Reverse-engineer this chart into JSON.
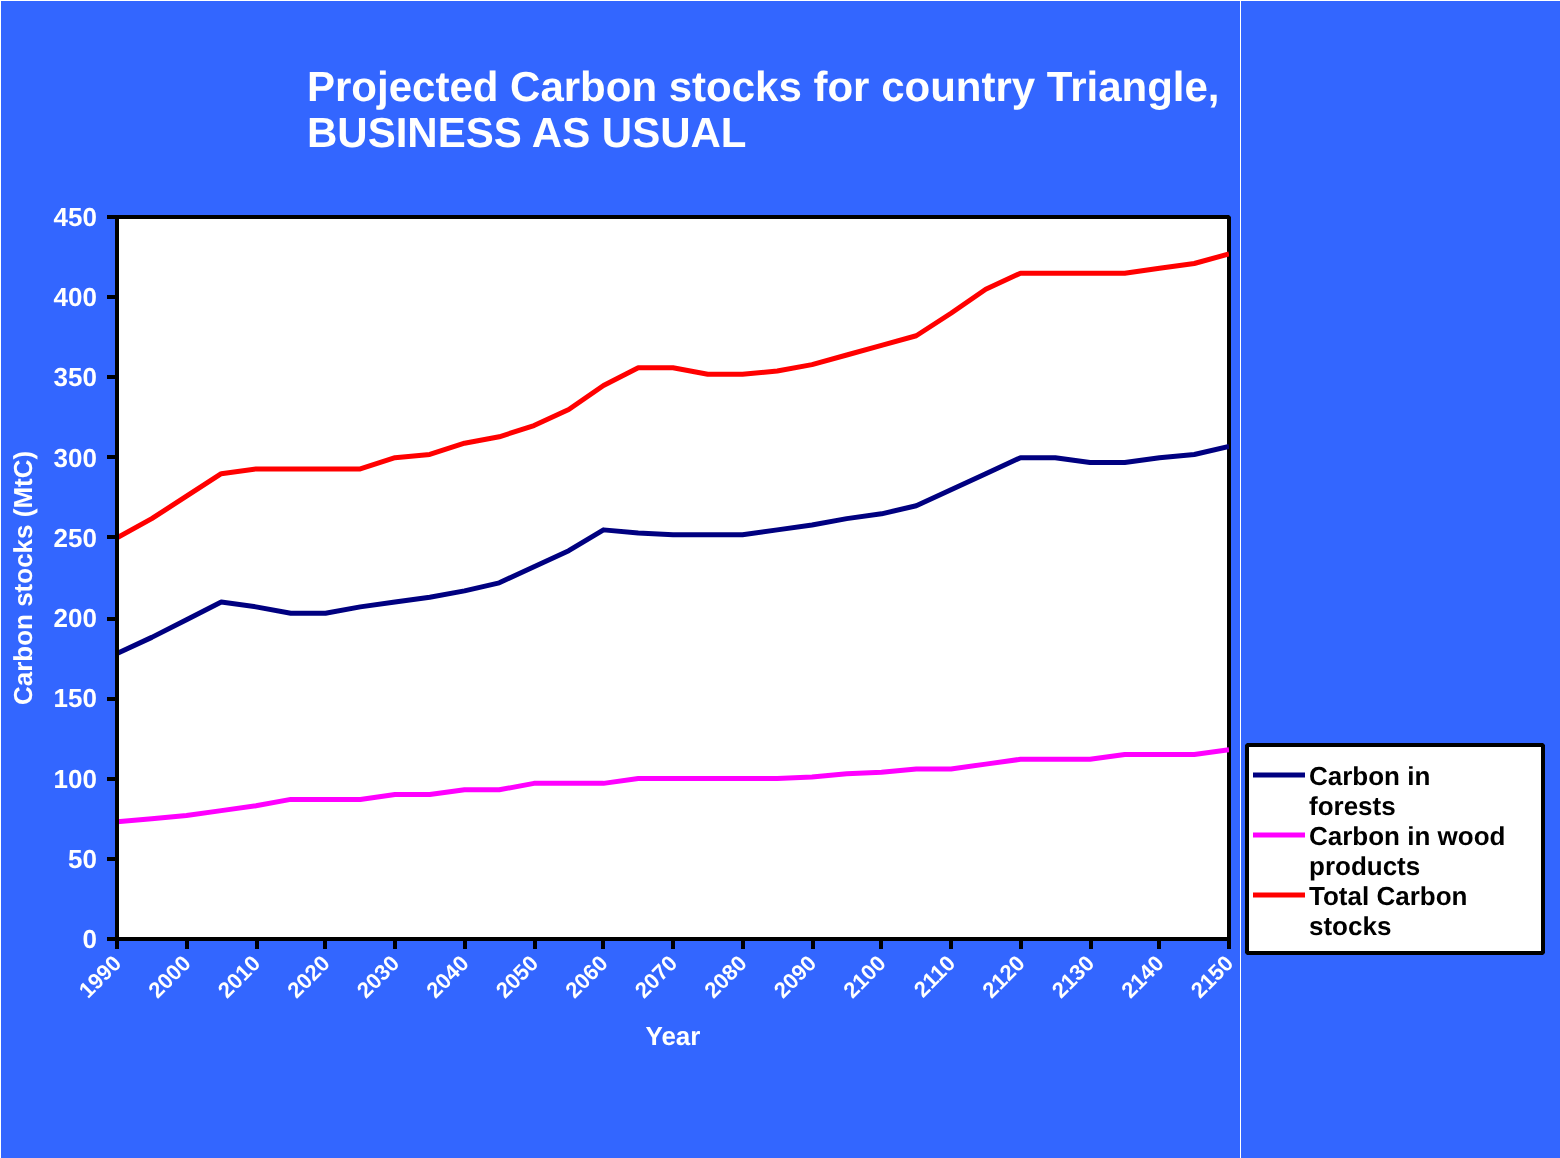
{
  "chart_data": {
    "type": "line",
    "title": "Projected Carbon stocks for country Triangle,\nBUSINESS AS USUAL",
    "xlabel": "Year",
    "ylabel": "Carbon stocks (MtC)",
    "x": [
      1990,
      1995,
      2000,
      2005,
      2010,
      2015,
      2020,
      2025,
      2030,
      2035,
      2040,
      2045,
      2050,
      2055,
      2060,
      2065,
      2070,
      2075,
      2080,
      2085,
      2090,
      2095,
      2100,
      2105,
      2110,
      2115,
      2120,
      2125,
      2130,
      2135,
      2140,
      2145,
      2150
    ],
    "series": [
      {
        "name": "Carbon in forests",
        "color": "#000080",
        "values": [
          178,
          188,
          199,
          210,
          207,
          203,
          203,
          207,
          210,
          213,
          217,
          222,
          232,
          242,
          255,
          253,
          252,
          252,
          252,
          255,
          258,
          262,
          265,
          270,
          280,
          290,
          300,
          300,
          297,
          297,
          300,
          302,
          307
        ]
      },
      {
        "name": "Carbon in wood products",
        "color": "#ff00ff",
        "values": [
          73,
          75,
          77,
          80,
          83,
          87,
          87,
          87,
          90,
          90,
          93,
          93,
          97,
          97,
          97,
          100,
          100,
          100,
          100,
          100,
          101,
          103,
          104,
          106,
          106,
          109,
          112,
          112,
          112,
          115,
          115,
          115,
          118
        ]
      },
      {
        "name": "Total Carbon stocks",
        "color": "#ff0000",
        "values": [
          250,
          262,
          276,
          290,
          293,
          293,
          293,
          293,
          300,
          302,
          309,
          313,
          320,
          330,
          345,
          356,
          356,
          352,
          352,
          354,
          358,
          364,
          370,
          376,
          390,
          405,
          415,
          415,
          415,
          415,
          418,
          421,
          427
        ]
      }
    ],
    "xlim": [
      1990,
      2150
    ],
    "xticks": [
      1990,
      2000,
      2010,
      2020,
      2030,
      2040,
      2050,
      2060,
      2070,
      2080,
      2090,
      2100,
      2110,
      2120,
      2130,
      2140,
      2150
    ],
    "ylim": [
      0,
      450
    ],
    "yticks": [
      0,
      50,
      100,
      150,
      200,
      250,
      300,
      350,
      400,
      450
    ],
    "grid": false,
    "legend": "right",
    "marker": "none",
    "line_style": "solid"
  }
}
